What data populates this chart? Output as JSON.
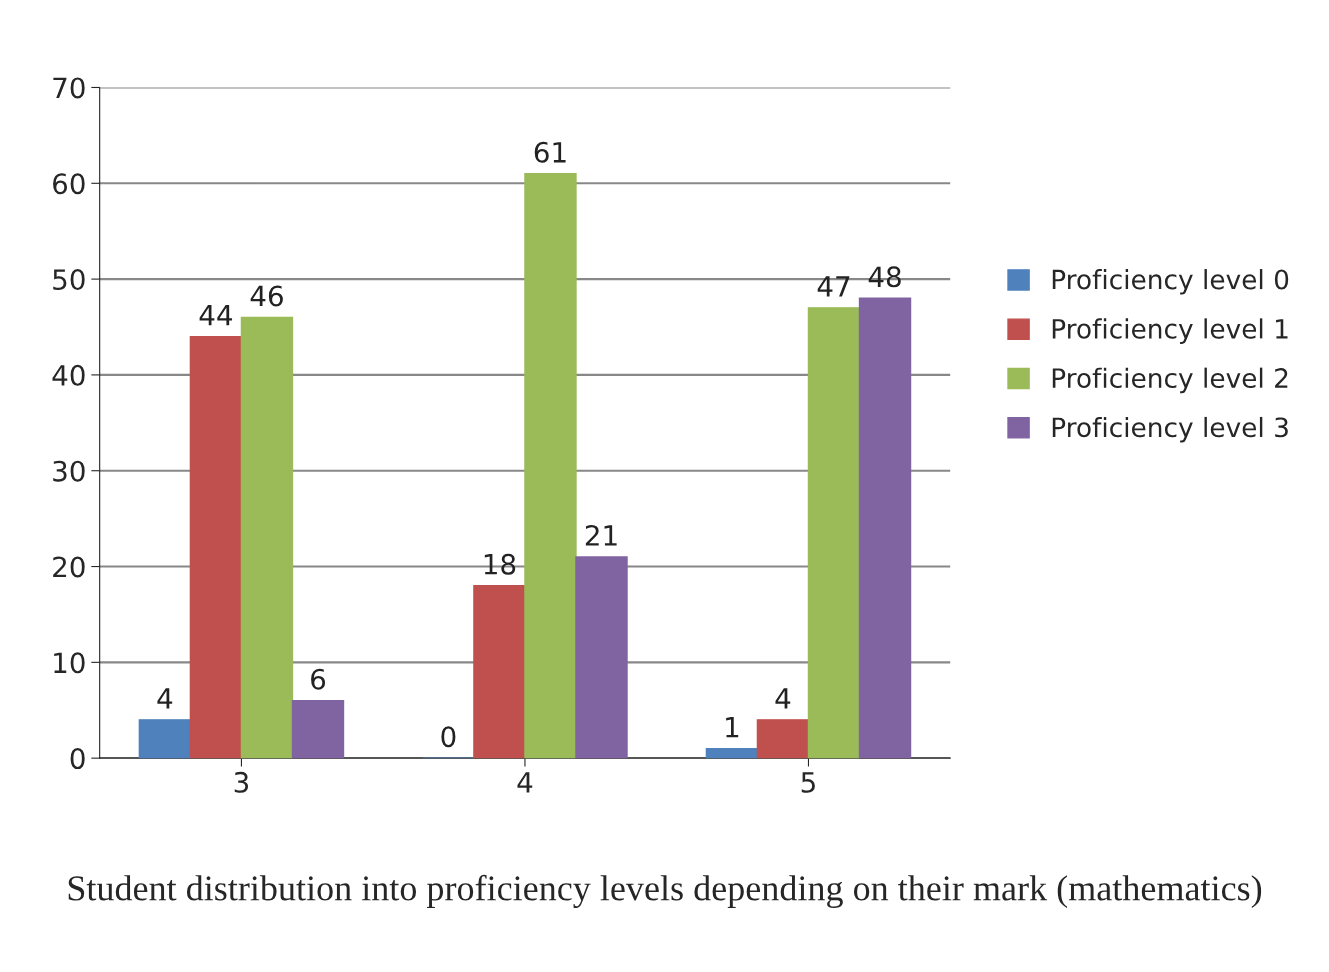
{
  "chart_data": {
    "type": "bar",
    "categories": [
      "3",
      "4",
      "5"
    ],
    "series": [
      {
        "name": "Proficiency level 0",
        "color": "#4f81bd",
        "values": [
          4,
          0,
          1
        ]
      },
      {
        "name": "Proficiency level 1",
        "color": "#c0504d",
        "values": [
          44,
          18,
          4
        ]
      },
      {
        "name": "Proficiency level 2",
        "color": "#9bbb59",
        "values": [
          46,
          61,
          47
        ]
      },
      {
        "name": "Proficiency level 3",
        "color": "#8064a2",
        "values": [
          6,
          21,
          48
        ]
      }
    ],
    "ylim": [
      0,
      70
    ],
    "yticks": [
      0,
      10,
      20,
      30,
      40,
      50,
      60,
      70
    ],
    "grid": "y",
    "legend": "right",
    "data_labels": true,
    "annotations": [
      "Student distribution into proficiency levels depending on their mark (mathematics)"
    ]
  }
}
